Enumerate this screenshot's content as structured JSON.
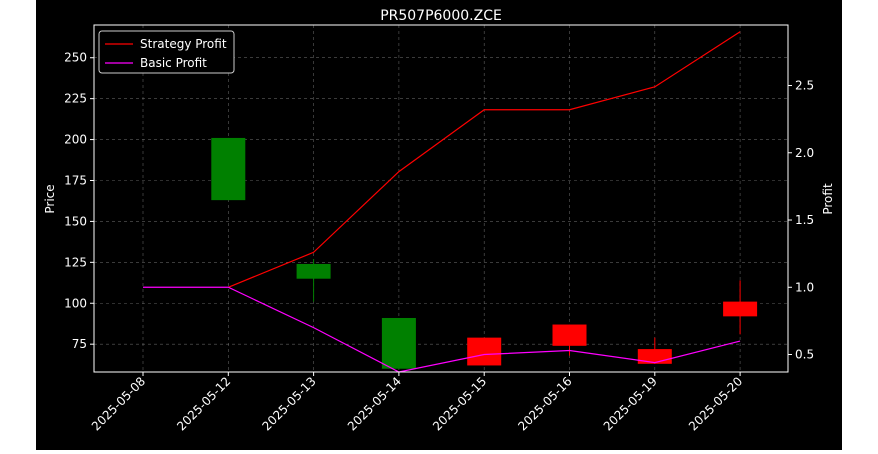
{
  "chart_data": {
    "type": "candlestick+line",
    "title": "PR507P6000.ZCE",
    "xlabel": "",
    "ylabel": "Price",
    "y2label": "Profit",
    "categories": [
      "2025-05-08",
      "2025-05-12",
      "2025-05-13",
      "2025-05-14",
      "2025-05-15",
      "2025-05-16",
      "2025-05-19",
      "2025-05-20"
    ],
    "ylim": [
      58,
      270
    ],
    "y2lim": [
      0.37,
      2.95
    ],
    "yticks": [
      75,
      100,
      125,
      150,
      175,
      200,
      225,
      250
    ],
    "y2ticks": [
      0.5,
      1.0,
      1.5,
      2.0,
      2.5
    ],
    "grid": true,
    "legend_position": "top-left",
    "candles": [
      null,
      {
        "open": 163,
        "close": 201,
        "high": 201,
        "low": 163
      },
      {
        "open": 115,
        "close": 124,
        "high": 127,
        "low": 101
      },
      {
        "open": 60,
        "close": 91,
        "high": 91,
        "low": 60
      },
      {
        "open": 79,
        "close": 62,
        "high": 79,
        "low": 62
      },
      {
        "open": 87,
        "close": 74,
        "high": 87,
        "low": 68
      },
      {
        "open": 72,
        "close": 63,
        "high": 79,
        "low": 63
      },
      {
        "open": 101,
        "close": 92,
        "high": 114,
        "low": 81
      }
    ],
    "series": [
      {
        "name": "Strategy Profit",
        "color": "#ff0000",
        "values": [
          null,
          1.0,
          1.26,
          1.86,
          2.32,
          2.32,
          2.49,
          2.9
        ]
      },
      {
        "name": "Basic Profit",
        "color": "#ff00ff",
        "values": [
          1.0,
          1.0,
          0.7,
          0.37,
          0.5,
          0.53,
          0.44,
          0.6
        ]
      }
    ],
    "colors": {
      "up": "#008000",
      "down": "#ff0000",
      "background": "#000000",
      "axis": "#ffffff",
      "grid": "#888888"
    }
  }
}
